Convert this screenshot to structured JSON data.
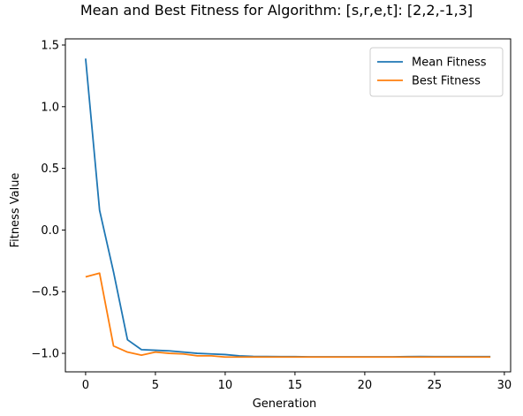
{
  "chart_data": {
    "type": "line",
    "title": "Mean and Best Fitness for Algorithm: [s,r,e,t]: [2,2,-1,3]",
    "xlabel": "Generation",
    "ylabel": "Fitness Value",
    "xlim": [
      -1.45,
      30.45
    ],
    "ylim": [
      -1.15,
      1.55
    ],
    "xticks": [
      0,
      5,
      10,
      15,
      20,
      25,
      30
    ],
    "yticks": [
      -1.0,
      -0.5,
      0.0,
      0.5,
      1.0,
      1.5
    ],
    "ytick_labels": [
      "−1.0",
      "−0.5",
      "0.0",
      "0.5",
      "1.0",
      "1.5"
    ],
    "grid": false,
    "legend_position": "top-right",
    "x": [
      0,
      1,
      2,
      3,
      4,
      5,
      6,
      7,
      8,
      9,
      10,
      11,
      12,
      13,
      14,
      15,
      16,
      17,
      18,
      19,
      20,
      21,
      22,
      23,
      24,
      25,
      26,
      27,
      28,
      29
    ],
    "series": [
      {
        "name": "Mean Fitness",
        "color": "#1f77b4",
        "values": [
          1.39,
          0.16,
          -0.34,
          -0.89,
          -0.97,
          -0.975,
          -0.98,
          -0.99,
          -1.0,
          -1.005,
          -1.01,
          -1.02,
          -1.025,
          -1.026,
          -1.027,
          -1.027,
          -1.028,
          -1.028,
          -1.028,
          -1.028,
          -1.028,
          -1.028,
          -1.028,
          -1.027,
          -1.026,
          -1.027,
          -1.027,
          -1.027,
          -1.027,
          -1.027
        ]
      },
      {
        "name": "Best Fitness",
        "color": "#ff7f0e",
        "values": [
          -0.38,
          -0.35,
          -0.94,
          -0.99,
          -1.015,
          -0.99,
          -1.0,
          -1.005,
          -1.02,
          -1.02,
          -1.03,
          -1.03,
          -1.03,
          -1.03,
          -1.03,
          -1.03,
          -1.03,
          -1.03,
          -1.03,
          -1.03,
          -1.03,
          -1.03,
          -1.03,
          -1.03,
          -1.03,
          -1.03,
          -1.03,
          -1.03,
          -1.03,
          -1.03
        ]
      }
    ]
  }
}
